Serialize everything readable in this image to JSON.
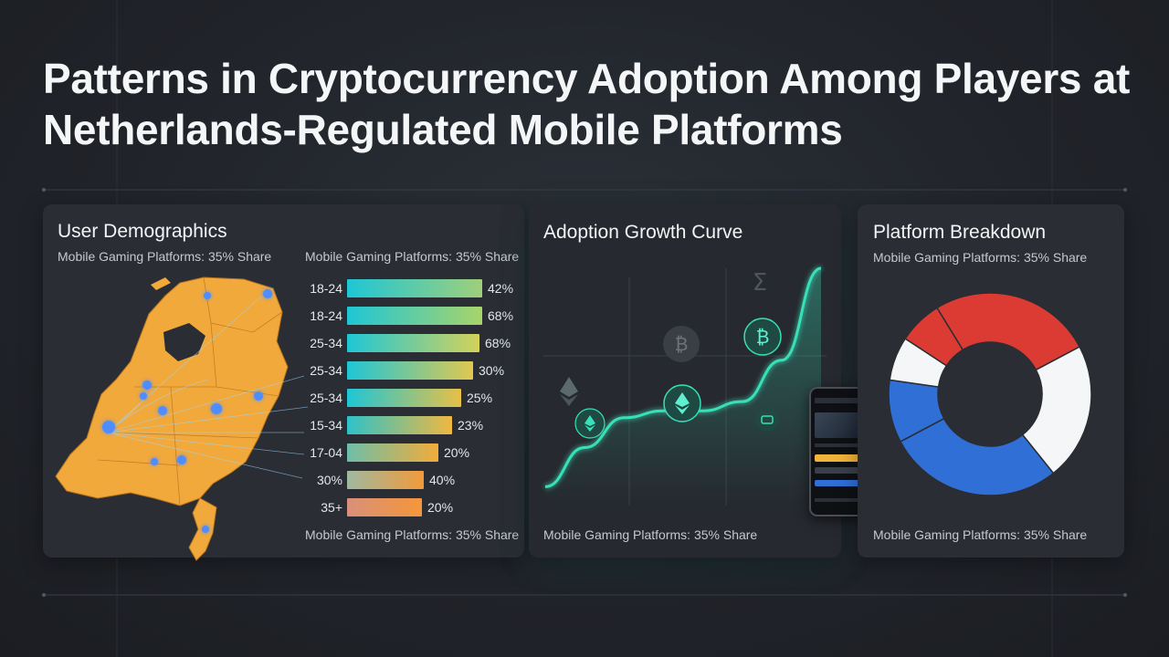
{
  "title": "Patterns in Cryptocurrency Adoption Among Players at Netherlands-Regulated Mobile Platforms",
  "colors": {
    "accent_teal": "#37e0b8",
    "blue": "#2f6fd6",
    "red": "#dc3b33",
    "white": "#f5f6f7",
    "map_orange": "#f2a93b"
  },
  "icons": [
    "ethereum-icon",
    "bitcoin-icon",
    "sigma-icon",
    "smartphone-icon"
  ],
  "panels": {
    "demographics": {
      "title": "User Demographics",
      "note_left": "Mobile Gaming Platforms: 35% Share",
      "note_right": "Mobile Gaming Platforms: 35% Share",
      "footer": "Mobile Gaming Platforms: 35% Share"
    },
    "growth": {
      "title": "Adoption Growth Curve",
      "footer": "Mobile Gaming Platforms: 35% Share"
    },
    "platform": {
      "title": "Platform Breakdown",
      "note": "Mobile Gaming Platforms: 35% Share",
      "footer": "Mobile Gaming Platforms: 35% Share"
    }
  },
  "chart_data": [
    {
      "type": "bar",
      "title": "User Demographics",
      "orientation": "horizontal",
      "categories": [
        "18-24",
        "18-24",
        "25-34",
        "25-34",
        "25-34",
        "15-34",
        "17-04",
        "30%",
        "35+"
      ],
      "values": [
        42,
        68,
        68,
        30,
        25,
        23,
        20,
        40,
        20
      ],
      "value_labels": [
        "42%",
        "68%",
        "68%",
        "30%",
        "25%",
        "23%",
        "20%",
        "40%",
        "20%"
      ]
    },
    {
      "type": "line",
      "title": "Adoption Growth Curve",
      "series": [
        {
          "values": [
            5,
            22,
            35,
            38,
            38,
            42,
            60,
            100
          ]
        }
      ]
    },
    {
      "type": "pie",
      "title": "Platform Breakdown",
      "style": "donut",
      "slices": [
        {
          "color": "#dc3b33",
          "value": 26
        },
        {
          "color": "#f5f6f7",
          "value": 22
        },
        {
          "color": "#2f6fd6",
          "value": 28
        },
        {
          "color": "#2f6fd6",
          "value": 10
        },
        {
          "color": "#f5f6f7",
          "value": 7
        },
        {
          "color": "#dc3b33",
          "value": 7
        }
      ]
    }
  ]
}
